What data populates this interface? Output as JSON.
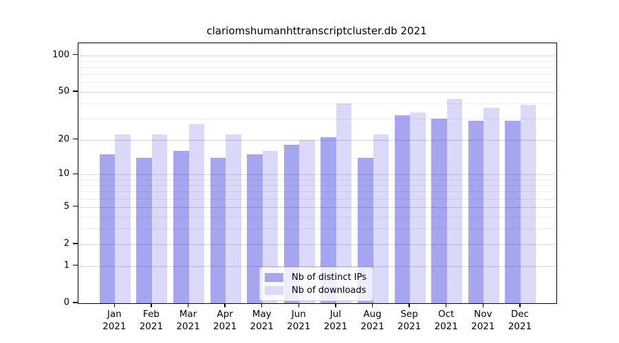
{
  "page": {
    "background": "#ffffff"
  },
  "chart_data": {
    "type": "bar",
    "title": "clariomshumanhttranscriptcluster.db 2021",
    "categories": [
      "Jan",
      "Feb",
      "Mar",
      "Apr",
      "May",
      "Jun",
      "Jul",
      "Aug",
      "Sep",
      "Oct",
      "Nov",
      "Dec"
    ],
    "x_tick_second_line": "2021",
    "series": [
      {
        "name": "Nb of distinct IPs",
        "color": "#a6a6f0",
        "values": [
          15,
          14,
          16,
          14,
          15,
          18,
          21,
          14,
          32,
          30,
          29,
          29
        ]
      },
      {
        "name": "Nb of downloads",
        "color": "#dadaf8",
        "values": [
          22,
          22,
          27,
          22,
          16,
          20,
          40,
          22,
          34,
          44,
          37,
          39
        ]
      }
    ],
    "xlabel": "",
    "ylabel": "",
    "y_scale": "log1p",
    "y_ticks": [
      0,
      1,
      2,
      5,
      10,
      20,
      50,
      100
    ],
    "y_minor_gridlines": [
      3,
      4,
      6,
      7,
      8,
      9,
      30,
      40,
      60,
      70,
      80,
      90
    ],
    "ylim": [
      0,
      126
    ],
    "grid": true,
    "legend": {
      "position": "bottom-center",
      "entries": [
        "Nb of distinct IPs",
        "Nb of downloads"
      ]
    }
  }
}
